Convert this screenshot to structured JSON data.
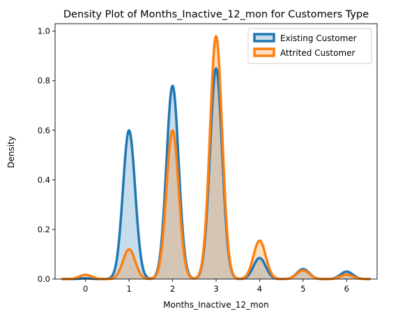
{
  "chart_data": {
    "type": "area",
    "title": "Density Plot of Months_Inactive_12_mon for Customers Type",
    "xlabel": "Months_Inactive_12_mon",
    "ylabel": "Density",
    "xlim": [
      -0.7,
      6.7
    ],
    "ylim": [
      0,
      1.03
    ],
    "xticks": [
      "0",
      "1",
      "2",
      "3",
      "4",
      "5",
      "6"
    ],
    "yticks": [
      "0.0",
      "0.2",
      "0.4",
      "0.6",
      "0.8",
      "1.0"
    ],
    "legend_position": "top-right",
    "grid": false,
    "series": [
      {
        "name": "Existing Customer",
        "color": "#1f77b4",
        "fill_alpha": 0.25,
        "peaks": [
          {
            "x": 0,
            "y": 0.003
          },
          {
            "x": 1,
            "y": 0.6
          },
          {
            "x": 2,
            "y": 0.78
          },
          {
            "x": 3,
            "y": 0.85
          },
          {
            "x": 4,
            "y": 0.085
          },
          {
            "x": 5,
            "y": 0.04
          },
          {
            "x": 6,
            "y": 0.03
          }
        ]
      },
      {
        "name": "Attrited Customer",
        "color": "#ff7f0e",
        "fill_alpha": 0.25,
        "peaks": [
          {
            "x": 0,
            "y": 0.017
          },
          {
            "x": 1,
            "y": 0.12
          },
          {
            "x": 2,
            "y": 0.6
          },
          {
            "x": 3,
            "y": 0.98
          },
          {
            "x": 4,
            "y": 0.155
          },
          {
            "x": 5,
            "y": 0.035
          },
          {
            "x": 6,
            "y": 0.018
          }
        ]
      }
    ]
  }
}
